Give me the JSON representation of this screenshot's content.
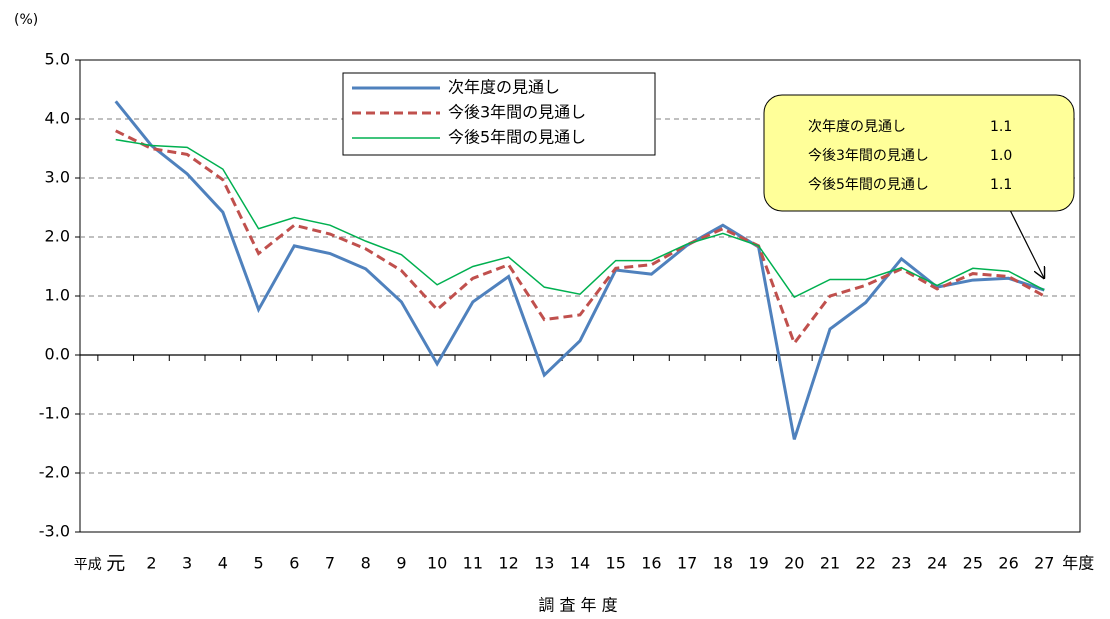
{
  "chart_data": {
    "type": "line",
    "y_unit": "(%)",
    "x_label": "調 査 年 度",
    "x_prefix": "平成",
    "x_suffix": "年度",
    "categories": [
      "元",
      "2",
      "3",
      "4",
      "5",
      "6",
      "7",
      "8",
      "9",
      "10",
      "11",
      "12",
      "13",
      "14",
      "15",
      "16",
      "17",
      "18",
      "19",
      "20",
      "21",
      "22",
      "23",
      "24",
      "25",
      "26",
      "27"
    ],
    "series": [
      {
        "name": "次年度の見通し",
        "color": "#4f81bd",
        "width": 3,
        "dash": false,
        "values": [
          4.3,
          3.55,
          3.07,
          2.42,
          0.77,
          1.85,
          1.72,
          1.46,
          0.9,
          -0.15,
          0.9,
          1.33,
          -0.34,
          0.24,
          1.44,
          1.37,
          1.86,
          2.2,
          1.83,
          -1.43,
          0.44,
          0.89,
          1.63,
          1.15,
          1.27,
          1.3,
          1.1
        ]
      },
      {
        "name": "今後3年間の見通し",
        "color": "#c0504d",
        "width": 3,
        "dash": true,
        "values": [
          3.8,
          3.5,
          3.4,
          2.97,
          1.72,
          2.2,
          2.05,
          1.8,
          1.43,
          0.77,
          1.3,
          1.53,
          0.6,
          0.68,
          1.47,
          1.53,
          1.87,
          2.14,
          1.85,
          0.2,
          1.0,
          1.18,
          1.46,
          1.12,
          1.38,
          1.33,
          1.0
        ]
      },
      {
        "name": "今後5年間の見通し",
        "color": "#00b050",
        "width": 1.5,
        "dash": false,
        "values": [
          3.65,
          3.55,
          3.52,
          3.15,
          2.14,
          2.33,
          2.2,
          1.93,
          1.7,
          1.19,
          1.5,
          1.66,
          1.15,
          1.03,
          1.6,
          1.6,
          1.88,
          2.06,
          1.85,
          0.98,
          1.28,
          1.28,
          1.48,
          1.18,
          1.47,
          1.42,
          1.1
        ]
      }
    ],
    "ylim": [
      -3,
      5
    ],
    "yticks": [
      {
        "value": -3,
        "label": "-3.0"
      },
      {
        "value": -2,
        "label": "-2.0"
      },
      {
        "value": -1,
        "label": "-1.0"
      },
      {
        "value": 0,
        "label": "0.0"
      },
      {
        "value": 1,
        "label": "1.0"
      },
      {
        "value": 2,
        "label": "2.0"
      },
      {
        "value": 3,
        "label": "3.0"
      },
      {
        "value": 4,
        "label": "4.0"
      },
      {
        "value": 5,
        "label": "5.0"
      }
    ],
    "grid": true,
    "callout": [
      {
        "name": "次年度の見通し",
        "value_label": "1.1"
      },
      {
        "name": "今後3年間の見通し",
        "value_label": "1.0"
      },
      {
        "name": "今後5年間の見通し",
        "value_label": "1.1"
      }
    ]
  }
}
